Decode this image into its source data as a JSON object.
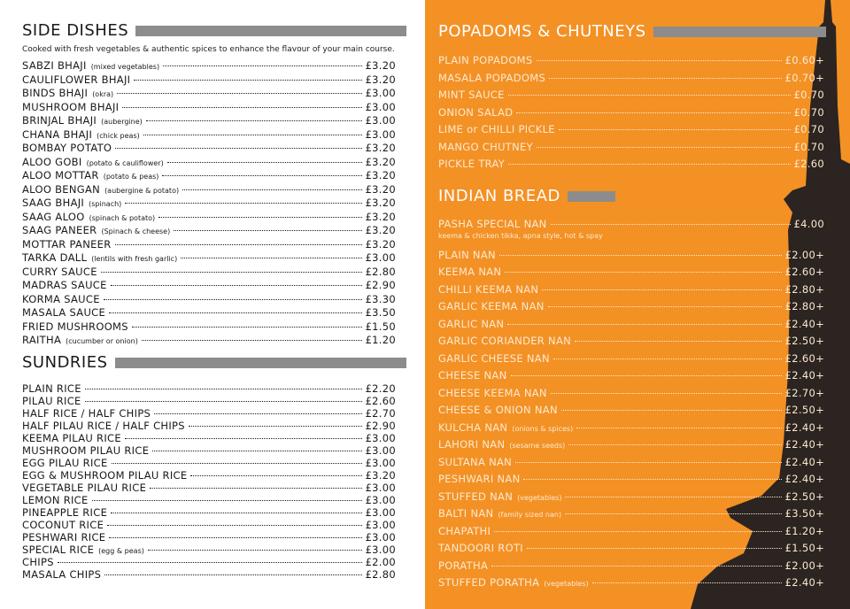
{
  "left": {
    "side_dishes": {
      "title": "SIDE DISHES",
      "description": "Cooked with fresh vegetables & authentic spices to enhance the flavour of your main course.",
      "items": [
        {
          "name": "SABZI BHAJI",
          "note": "(mixed vegetables)",
          "price": "£3.20"
        },
        {
          "name": "CAULIFLOWER BHAJI",
          "price": "£3.20"
        },
        {
          "name": "BINDS BHAJI",
          "note": "(okra)",
          "price": "£3.00"
        },
        {
          "name": "MUSHROOM BHAJI",
          "price": "£3.00"
        },
        {
          "name": "BRINJAL BHAJI",
          "note": "(aubergine)",
          "price": "£3.00"
        },
        {
          "name": "CHANA BHAJI",
          "note": "(chick peas)",
          "price": "£3.00"
        },
        {
          "name": "BOMBAY POTATO",
          "price": "£3.20"
        },
        {
          "name": "ALOO GOBI",
          "note": "(potato & cauliflower)",
          "price": "£3.20"
        },
        {
          "name": "ALOO MOTTAR",
          "note": "(potato & peas)",
          "price": "£3.20"
        },
        {
          "name": "ALOO BENGAN",
          "note": "(aubergine & potato)",
          "price": "£3.20"
        },
        {
          "name": "SAAG BHAJI",
          "note": "(spinach)",
          "price": "£3.20"
        },
        {
          "name": "SAAG ALOO",
          "note": "(spinach & potato)",
          "price": "£3.20"
        },
        {
          "name": "SAAG PANEER",
          "note": "(Spinach & cheese)",
          "price": "£3.20"
        },
        {
          "name": "MOTTAR PANEER",
          "price": "£3.20"
        },
        {
          "name": "TARKA DALL",
          "note": "(lentils with fresh garlic)",
          "price": "£3.00"
        },
        {
          "name": "CURRY SAUCE",
          "price": "£2.80"
        },
        {
          "name": "MADRAS SAUCE",
          "price": "£2.90"
        },
        {
          "name": "KORMA SAUCE",
          "price": "£3.30"
        },
        {
          "name": "MASALA SAUCE",
          "price": "£3.50"
        },
        {
          "name": "FRIED MUSHROOMS",
          "price": "£1.50"
        },
        {
          "name": "RAITHA",
          "note": "(cucumber or onion)",
          "price": "£1.20"
        }
      ]
    },
    "sundries": {
      "title": "SUNDRIES",
      "items": [
        {
          "name": "PLAIN RICE",
          "price": "£2.20"
        },
        {
          "name": "PILAU RICE",
          "price": "£2.60"
        },
        {
          "name": "HALF RICE / HALF CHIPS",
          "price": "£2.70"
        },
        {
          "name": "HALF PILAU RICE / HALF CHIPS",
          "price": "£2.90"
        },
        {
          "name": "KEEMA PILAU RICE",
          "price": "£3.00"
        },
        {
          "name": "MUSHROOM PILAU RICE",
          "price": "£3.00"
        },
        {
          "name": "EGG PILAU RICE",
          "price": "£3.00"
        },
        {
          "name": "EGG & MUSHROOM PILAU RICE",
          "price": "£3.20"
        },
        {
          "name": "VEGETABLE PILAU RICE",
          "price": "£3.00"
        },
        {
          "name": "LEMON RICE",
          "price": "£3.00"
        },
        {
          "name": "PINEAPPLE RICE",
          "price": "£3.00"
        },
        {
          "name": "COCONUT RICE",
          "price": "£3.00"
        },
        {
          "name": "PESHWARI RICE",
          "price": "£3.00"
        },
        {
          "name": "SPECIAL RICE",
          "note": "(egg & peas)",
          "price": "£3.00"
        },
        {
          "name": "CHIPS",
          "price": "£2.00"
        },
        {
          "name": "MASALA CHIPS",
          "price": "£2.80"
        }
      ]
    }
  },
  "right": {
    "popadoms": {
      "title": "POPADOMS & CHUTNEYS",
      "items": [
        {
          "name": "PLAIN POPADOMS",
          "price": "£0.60+"
        },
        {
          "name": "MASALA POPADOMS",
          "price": "£0.70+"
        },
        {
          "name": "MINT SAUCE",
          "price": "£0.70"
        },
        {
          "name": "ONION SALAD",
          "price": "£0.70"
        },
        {
          "name": "LIME or CHILLI PICKLE",
          "price": "£0.70"
        },
        {
          "name": "MANGO CHUTNEY",
          "price": "£0.70"
        },
        {
          "name": "PICKLE TRAY",
          "price": "£2.60"
        }
      ]
    },
    "indian_bread": {
      "title": "INDIAN BREAD",
      "items": [
        {
          "name": "PASHA SPECIAL NAN",
          "price": "£4.00",
          "subnote": "keema & chicken tikka, apna style, hot & spay"
        },
        {
          "name": "PLAIN NAN",
          "price": "£2.00+"
        },
        {
          "name": "KEEMA NAN",
          "price": "£2.60+"
        },
        {
          "name": "CHILLI KEEMA NAN",
          "price": "£2.80+"
        },
        {
          "name": "GARLIC KEEMA NAN",
          "price": "£2.80+"
        },
        {
          "name": "GARLIC NAN",
          "price": "£2.40+"
        },
        {
          "name": "GARLIC CORIANDER NAN",
          "price": "£2.50+"
        },
        {
          "name": "GARLIC CHEESE NAN",
          "price": "£2.60+"
        },
        {
          "name": "CHEESE NAN",
          "price": "£2.40+"
        },
        {
          "name": "CHEESE KEEMA NAN",
          "price": "£2.70+"
        },
        {
          "name": "CHEESE & ONION NAN",
          "price": "£2.50+"
        },
        {
          "name": "KULCHA NAN",
          "note": "(onions & spices)",
          "price": "£2.40+"
        },
        {
          "name": "LAHORI NAN",
          "note": "(sesame seeds)",
          "price": "£2.40+"
        },
        {
          "name": "SULTANA NAN",
          "price": "£2.40+"
        },
        {
          "name": "PESHWARI NAN",
          "price": "£2.40+"
        },
        {
          "name": "STUFFED NAN",
          "note": "(vegetables)",
          "price": "£2.50+"
        },
        {
          "name": "BALTI NAN",
          "note": "(family sized nan)",
          "price": "£3.50+"
        },
        {
          "name": "CHAPATHI",
          "price": "£1.20+"
        },
        {
          "name": "TANDOORI ROTI",
          "price": "£1.50+"
        },
        {
          "name": "PORATHA",
          "price": "£2.00+"
        },
        {
          "name": "STUFFED PORATHA",
          "note": "(vegetables)",
          "price": "£2.40+"
        }
      ]
    }
  }
}
